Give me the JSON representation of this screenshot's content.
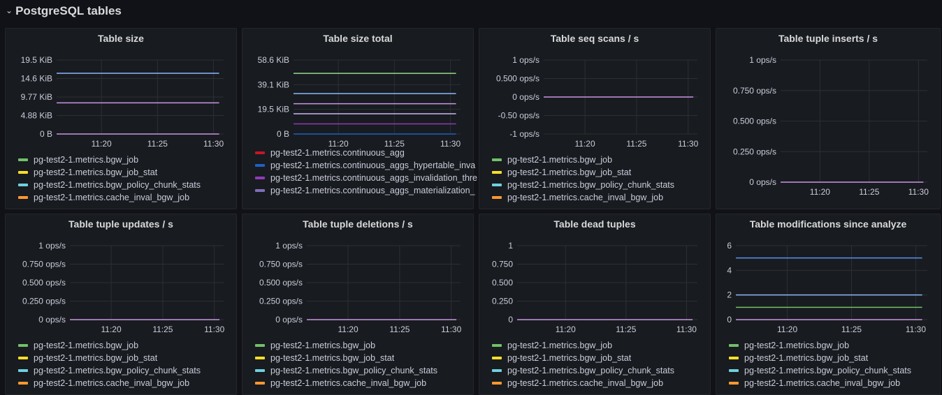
{
  "row": {
    "title": "PostgreSQL tables",
    "chevron_icon": "chevron-down-icon"
  },
  "time_ticks": [
    "11:20",
    "11:25",
    "11:30"
  ],
  "panels": [
    {
      "title": "Table size",
      "y_ticks": [
        "0 B",
        "4.88 KiB",
        "9.77 KiB",
        "14.6 KiB",
        "19.5 KiB"
      ],
      "ylim": [
        0,
        19.5
      ],
      "series_lines": [
        {
          "value": 16,
          "color": "#8ab8ff"
        },
        {
          "value": 8.2,
          "color": "#ca95e5"
        },
        {
          "value": 0,
          "color": "#ca95e5"
        }
      ],
      "legend": [
        {
          "label": "pg-test2-1.metrics.bgw_job",
          "color": "#73bf69"
        },
        {
          "label": "pg-test2-1.metrics.bgw_job_stat",
          "color": "#fade2a"
        },
        {
          "label": "pg-test2-1.metrics.bgw_policy_chunk_stats",
          "color": "#6ed0e0"
        },
        {
          "label": "pg-test2-1.metrics.cache_inval_bgw_job",
          "color": "#ff9830"
        }
      ]
    },
    {
      "title": "Table size total",
      "y_ticks": [
        "0 B",
        "19.5 KiB",
        "39.1 KiB",
        "58.6 KiB"
      ],
      "ylim": [
        0,
        58.6
      ],
      "series_lines": [
        {
          "value": 48,
          "color": "#96d98d"
        },
        {
          "value": 32,
          "color": "#8ab8ff"
        },
        {
          "value": 24,
          "color": "#ca95e5"
        },
        {
          "value": 16,
          "color": "#c8b8f0"
        },
        {
          "value": 8,
          "color": "#8f3bb8"
        },
        {
          "value": 0,
          "color": "#1f60c4"
        }
      ],
      "legend_scrolled": true,
      "legend": [
        {
          "label": "pg-test2-1.metrics.continuous_agg",
          "color": "#c4162a"
        },
        {
          "label": "pg-test2-1.metrics.continuous_aggs_hypertable_inva",
          "color": "#1f60c4"
        },
        {
          "label": "pg-test2-1.metrics.continuous_aggs_invalidation_thre",
          "color": "#8f3bb8"
        },
        {
          "label": "pg-test2-1.metrics.continuous_aggs_materialization_",
          "color": "#806eb7"
        }
      ]
    },
    {
      "title": "Table seq scans / s",
      "y_ticks": [
        "-1 ops/s",
        "-0.50 ops/s",
        "0 ops/s",
        "0.500 ops/s",
        "1 ops/s"
      ],
      "ylim": [
        -1,
        1
      ],
      "series_lines": [
        {
          "value": 0,
          "color": "#ca95e5"
        }
      ],
      "legend": [
        {
          "label": "pg-test2-1.metrics.bgw_job",
          "color": "#73bf69"
        },
        {
          "label": "pg-test2-1.metrics.bgw_job_stat",
          "color": "#fade2a"
        },
        {
          "label": "pg-test2-1.metrics.bgw_policy_chunk_stats",
          "color": "#6ed0e0"
        },
        {
          "label": "pg-test2-1.metrics.cache_inval_bgw_job",
          "color": "#ff9830"
        }
      ]
    },
    {
      "title": "Table tuple inserts / s",
      "y_ticks": [
        "0 ops/s",
        "0.250 ops/s",
        "0.500 ops/s",
        "0.750 ops/s",
        "1 ops/s"
      ],
      "ylim": [
        0,
        1
      ],
      "series_lines": [
        {
          "value": 0,
          "color": "#ca95e5"
        }
      ],
      "legend": []
    },
    {
      "title": "Table tuple updates / s",
      "y_ticks": [
        "0 ops/s",
        "0.250 ops/s",
        "0.500 ops/s",
        "0.750 ops/s",
        "1 ops/s"
      ],
      "ylim": [
        0,
        1
      ],
      "series_lines": [
        {
          "value": 0,
          "color": "#ca95e5"
        }
      ],
      "legend": [
        {
          "label": "pg-test2-1.metrics.bgw_job",
          "color": "#73bf69"
        },
        {
          "label": "pg-test2-1.metrics.bgw_job_stat",
          "color": "#fade2a"
        },
        {
          "label": "pg-test2-1.metrics.bgw_policy_chunk_stats",
          "color": "#6ed0e0"
        },
        {
          "label": "pg-test2-1.metrics.cache_inval_bgw_job",
          "color": "#ff9830"
        }
      ]
    },
    {
      "title": "Table tuple deletions / s",
      "y_ticks": [
        "0 ops/s",
        "0.250 ops/s",
        "0.500 ops/s",
        "0.750 ops/s",
        "1 ops/s"
      ],
      "ylim": [
        0,
        1
      ],
      "series_lines": [
        {
          "value": 0,
          "color": "#ca95e5"
        }
      ],
      "legend": [
        {
          "label": "pg-test2-1.metrics.bgw_job",
          "color": "#73bf69"
        },
        {
          "label": "pg-test2-1.metrics.bgw_job_stat",
          "color": "#fade2a"
        },
        {
          "label": "pg-test2-1.metrics.bgw_policy_chunk_stats",
          "color": "#6ed0e0"
        },
        {
          "label": "pg-test2-1.metrics.cache_inval_bgw_job",
          "color": "#ff9830"
        }
      ]
    },
    {
      "title": "Table dead tuples",
      "y_ticks": [
        "0",
        "0.250",
        "0.500",
        "0.750",
        "1"
      ],
      "ylim": [
        0,
        1
      ],
      "series_lines": [
        {
          "value": 0,
          "color": "#ca95e5"
        }
      ],
      "legend": [
        {
          "label": "pg-test2-1.metrics.bgw_job",
          "color": "#73bf69"
        },
        {
          "label": "pg-test2-1.metrics.bgw_job_stat",
          "color": "#fade2a"
        },
        {
          "label": "pg-test2-1.metrics.bgw_policy_chunk_stats",
          "color": "#6ed0e0"
        },
        {
          "label": "pg-test2-1.metrics.cache_inval_bgw_job",
          "color": "#ff9830"
        }
      ]
    },
    {
      "title": "Table modifications since analyze",
      "y_ticks": [
        "0",
        "2",
        "4",
        "6"
      ],
      "ylim": [
        0,
        6
      ],
      "series_lines": [
        {
          "value": 5,
          "color": "#5794f2"
        },
        {
          "value": 2,
          "color": "#8ab8ff"
        },
        {
          "value": 1,
          "color": "#73bf69"
        },
        {
          "value": 0,
          "color": "#ca95e5"
        }
      ],
      "legend": [
        {
          "label": "pg-test2-1.metrics.bgw_job",
          "color": "#73bf69"
        },
        {
          "label": "pg-test2-1.metrics.bgw_job_stat",
          "color": "#fade2a"
        },
        {
          "label": "pg-test2-1.metrics.bgw_policy_chunk_stats",
          "color": "#6ed0e0"
        },
        {
          "label": "pg-test2-1.metrics.cache_inval_bgw_job",
          "color": "#ff9830"
        }
      ]
    }
  ]
}
